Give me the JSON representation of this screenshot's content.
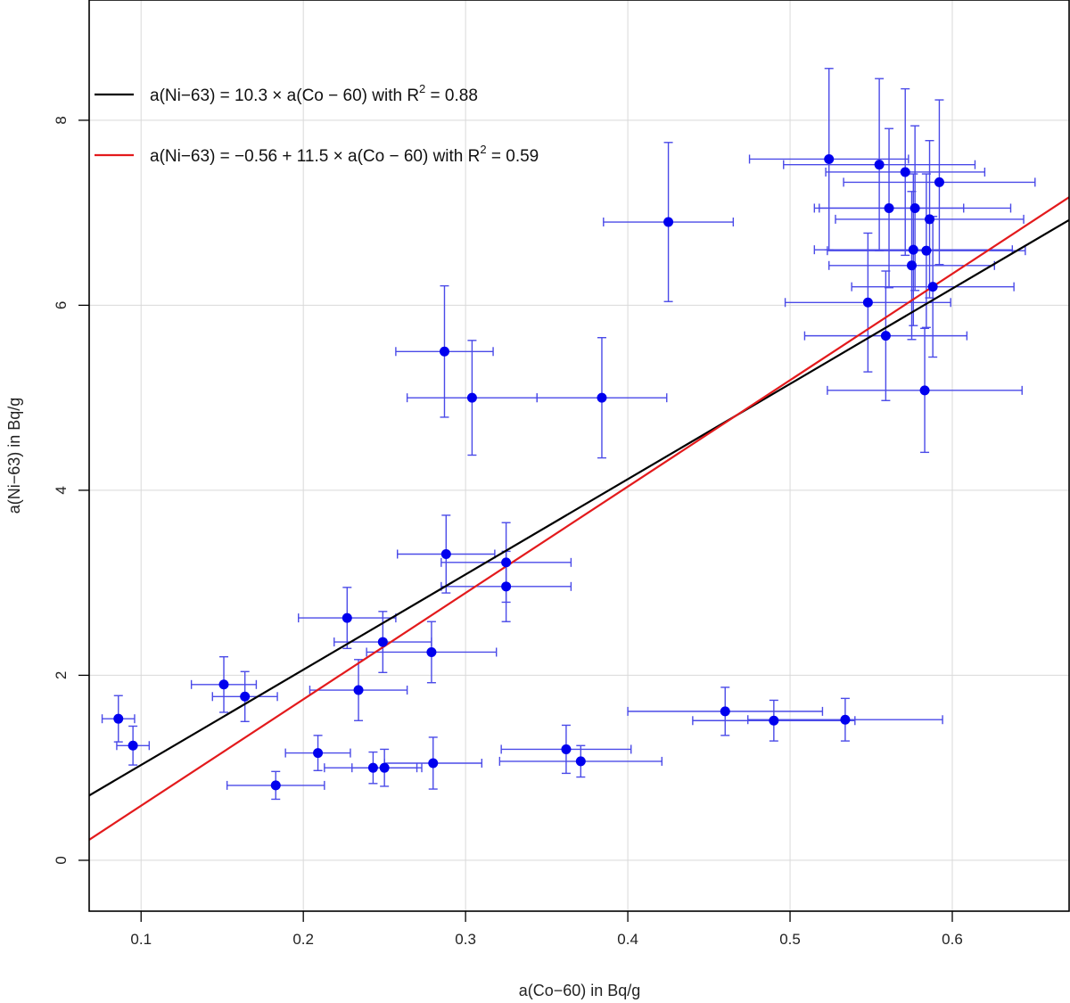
{
  "chart_data": {
    "type": "scatter",
    "title": "",
    "xlabel": "a(Co−60) in Bq/g",
    "ylabel": "a(Ni−63) in Bq/g",
    "xlim": [
      0.068,
      0.672
    ],
    "ylim": [
      -0.55,
      9.3
    ],
    "grid": true,
    "x_ticks": [
      0.1,
      0.2,
      0.3,
      0.4,
      0.5,
      0.6
    ],
    "x_tick_labels": [
      "0.1",
      "0.2",
      "0.3",
      "0.4",
      "0.5",
      "0.6"
    ],
    "y_ticks": [
      0,
      2,
      4,
      6,
      8
    ],
    "y_tick_labels": [
      "0",
      "2",
      "4",
      "6",
      "8"
    ],
    "legend_position": "top-left",
    "fits": [
      {
        "name": "black-fit",
        "color": "#000000",
        "intercept": 0,
        "slope": 10.3,
        "legend_main": "a(Ni−63) = 10.3 × a(Co − 60) with R",
        "legend_sup": "2",
        "legend_tail": " = 0.88"
      },
      {
        "name": "red-fit",
        "color": "#e31a1c",
        "intercept": -0.56,
        "slope": 11.5,
        "legend_main": "a(Ni−63) = −0.56 + 11.5 × a(Co − 60) with R",
        "legend_sup": "2",
        "legend_tail": " = 0.59"
      }
    ],
    "series": [
      {
        "name": "measurements",
        "color": "#0000ee",
        "errorbar_color": "#4a4ae8",
        "points": [
          {
            "x": 0.524,
            "y": 7.58,
            "xerr": 0.049,
            "yerr": 0.98
          },
          {
            "x": 0.555,
            "y": 7.52,
            "xerr": 0.059,
            "yerr": 0.93
          },
          {
            "x": 0.571,
            "y": 7.44,
            "xerr": 0.049,
            "yerr": 0.9
          },
          {
            "x": 0.592,
            "y": 7.33,
            "xerr": 0.059,
            "yerr": 0.89
          },
          {
            "x": 0.561,
            "y": 7.05,
            "xerr": 0.046,
            "yerr": 0.86
          },
          {
            "x": 0.577,
            "y": 7.05,
            "xerr": 0.059,
            "yerr": 0.89
          },
          {
            "x": 0.586,
            "y": 6.93,
            "xerr": 0.058,
            "yerr": 0.85
          },
          {
            "x": 0.425,
            "y": 6.9,
            "xerr": 0.04,
            "yerr": 0.86
          },
          {
            "x": 0.576,
            "y": 6.6,
            "xerr": 0.061,
            "yerr": 0.82
          },
          {
            "x": 0.584,
            "y": 6.59,
            "xerr": 0.061,
            "yerr": 0.83
          },
          {
            "x": 0.575,
            "y": 6.43,
            "xerr": 0.051,
            "yerr": 0.8
          },
          {
            "x": 0.588,
            "y": 6.2,
            "xerr": 0.05,
            "yerr": 0.76
          },
          {
            "x": 0.548,
            "y": 6.03,
            "xerr": 0.051,
            "yerr": 0.75
          },
          {
            "x": 0.559,
            "y": 5.67,
            "xerr": 0.05,
            "yerr": 0.7
          },
          {
            "x": 0.583,
            "y": 5.08,
            "xerr": 0.06,
            "yerr": 0.67
          },
          {
            "x": 0.287,
            "y": 5.5,
            "xerr": 0.03,
            "yerr": 0.71
          },
          {
            "x": 0.304,
            "y": 5.0,
            "xerr": 0.04,
            "yerr": 0.62
          },
          {
            "x": 0.384,
            "y": 5.0,
            "xerr": 0.04,
            "yerr": 0.65
          },
          {
            "x": 0.288,
            "y": 3.31,
            "xerr": 0.03,
            "yerr": 0.42
          },
          {
            "x": 0.325,
            "y": 3.22,
            "xerr": 0.04,
            "yerr": 0.43
          },
          {
            "x": 0.325,
            "y": 2.96,
            "xerr": 0.04,
            "yerr": 0.38
          },
          {
            "x": 0.227,
            "y": 2.62,
            "xerr": 0.03,
            "yerr": 0.33
          },
          {
            "x": 0.249,
            "y": 2.36,
            "xerr": 0.03,
            "yerr": 0.33
          },
          {
            "x": 0.279,
            "y": 2.25,
            "xerr": 0.04,
            "yerr": 0.33
          },
          {
            "x": 0.151,
            "y": 1.9,
            "xerr": 0.02,
            "yerr": 0.3
          },
          {
            "x": 0.164,
            "y": 1.77,
            "xerr": 0.02,
            "yerr": 0.27
          },
          {
            "x": 0.234,
            "y": 1.84,
            "xerr": 0.03,
            "yerr": 0.33
          },
          {
            "x": 0.086,
            "y": 1.53,
            "xerr": 0.01,
            "yerr": 0.25
          },
          {
            "x": 0.095,
            "y": 1.24,
            "xerr": 0.01,
            "yerr": 0.21
          },
          {
            "x": 0.209,
            "y": 1.16,
            "xerr": 0.02,
            "yerr": 0.19
          },
          {
            "x": 0.243,
            "y": 1.0,
            "xerr": 0.03,
            "yerr": 0.17
          },
          {
            "x": 0.25,
            "y": 1.0,
            "xerr": 0.02,
            "yerr": 0.2
          },
          {
            "x": 0.28,
            "y": 1.05,
            "xerr": 0.03,
            "yerr": 0.28
          },
          {
            "x": 0.183,
            "y": 0.81,
            "xerr": 0.03,
            "yerr": 0.15
          },
          {
            "x": 0.362,
            "y": 1.2,
            "xerr": 0.04,
            "yerr": 0.26
          },
          {
            "x": 0.371,
            "y": 1.07,
            "xerr": 0.05,
            "yerr": 0.17
          },
          {
            "x": 0.46,
            "y": 1.61,
            "xerr": 0.06,
            "yerr": 0.26
          },
          {
            "x": 0.49,
            "y": 1.51,
            "xerr": 0.05,
            "yerr": 0.22
          },
          {
            "x": 0.534,
            "y": 1.52,
            "xerr": 0.06,
            "yerr": 0.23
          }
        ]
      }
    ]
  }
}
